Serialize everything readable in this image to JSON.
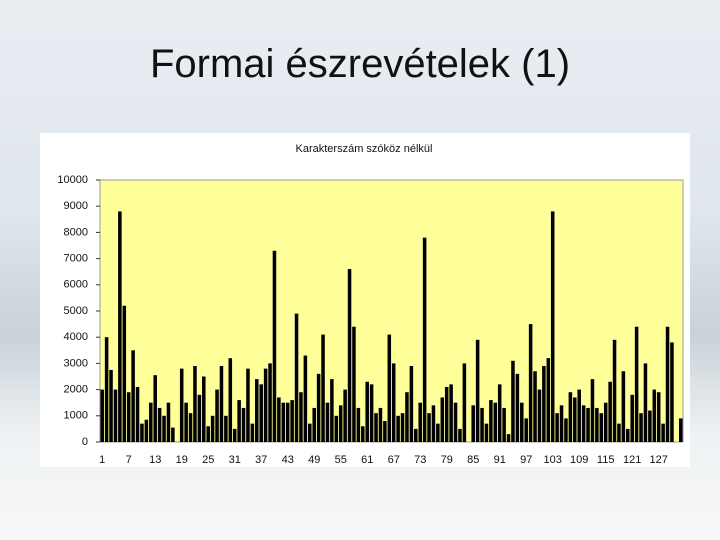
{
  "slide_title": "Formai észrevételek (1)",
  "chart_data": {
    "type": "bar",
    "title": "Karakterszám szóköz nélkül",
    "categories": [
      "1",
      null,
      null,
      null,
      null,
      null,
      "7",
      null,
      null,
      null,
      null,
      null,
      "13",
      null,
      null,
      null,
      null,
      null,
      "19",
      null,
      null,
      null,
      null,
      null,
      "25",
      null,
      null,
      null,
      null,
      null,
      "31",
      null,
      null,
      null,
      null,
      null,
      "37",
      null,
      null,
      null,
      null,
      null,
      "43",
      null,
      null,
      null,
      null,
      null,
      "49",
      null,
      null,
      null,
      null,
      null,
      "55",
      null,
      null,
      null,
      null,
      null,
      "61",
      null,
      null,
      null,
      null,
      null,
      "67",
      null,
      null,
      null,
      null,
      null,
      "73",
      null,
      null,
      null,
      null,
      null,
      "79",
      null,
      null,
      null,
      null,
      null,
      "85",
      null,
      null,
      null,
      null,
      null,
      "91",
      null,
      null,
      null,
      null,
      null,
      "97",
      null,
      null,
      null,
      null,
      null,
      "103",
      null,
      null,
      null,
      null,
      null,
      "109",
      null,
      null,
      null,
      null,
      null,
      "115",
      null,
      null,
      null,
      null,
      null,
      "121",
      null,
      null,
      null,
      null,
      null,
      "127",
      null,
      null,
      null,
      null,
      null
    ],
    "values": [
      2000,
      4000,
      2750,
      2000,
      8800,
      5200,
      1900,
      3500,
      2100,
      700,
      850,
      1500,
      2550,
      1300,
      1000,
      1500,
      550,
      0,
      2800,
      1500,
      1100,
      2900,
      1800,
      2500,
      600,
      1000,
      2000,
      2900,
      1000,
      3200,
      500,
      1600,
      1300,
      2800,
      700,
      2400,
      2200,
      2800,
      3000,
      7300,
      1700,
      1500,
      1500,
      1600,
      4900,
      1900,
      3300,
      700,
      1300,
      2600,
      4100,
      1500,
      2400,
      1000,
      1400,
      2000,
      6600,
      4400,
      1300,
      600,
      2300,
      2200,
      1100,
      1300,
      800,
      4100,
      3000,
      1000,
      1100,
      1900,
      2900,
      500,
      1500,
      7800,
      1100,
      1400,
      700,
      1700,
      2100,
      2200,
      1500,
      500,
      3000,
      0,
      1400,
      3900,
      1300,
      700,
      1600,
      1500,
      2200,
      1300,
      300,
      3100,
      2600,
      1500,
      900,
      4500,
      2700,
      2000,
      2900,
      3200,
      8800,
      1100,
      1400,
      900,
      1900,
      1700,
      2000,
      1400,
      1300,
      2400,
      1300,
      1100,
      1500,
      2300,
      3900,
      700,
      2700,
      500,
      1800,
      4400,
      1100,
      3000,
      1200,
      2000,
      1900,
      700,
      4400,
      3800,
      0,
      900
    ],
    "color": "#000000",
    "ylim": [
      0,
      10000
    ],
    "yticks": [
      0,
      1000,
      2000,
      3000,
      4000,
      5000,
      6000,
      7000,
      8000,
      9000,
      10000
    ],
    "grid": false
  }
}
